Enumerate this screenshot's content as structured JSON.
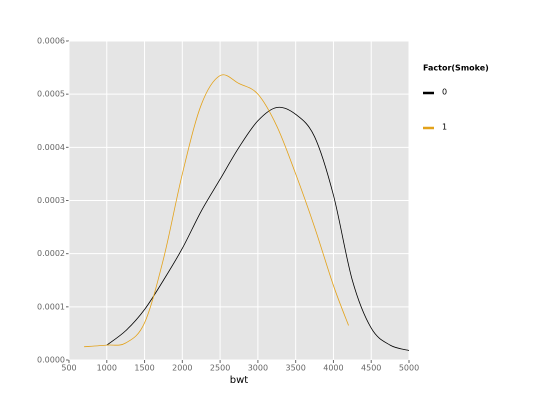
{
  "chart_data": {
    "type": "line",
    "x_label": "bwt",
    "legend_title": "Factor(Smoke)",
    "legend_position": "right",
    "grid": true,
    "xlim": [
      500,
      5000
    ],
    "xticks": [
      500,
      1000,
      1500,
      2000,
      2500,
      3000,
      3500,
      4000,
      4500,
      5000
    ],
    "ylim": [
      0,
      0.0006
    ],
    "yticks": [
      {
        "value": 0,
        "label": "0.0000"
      },
      {
        "value": 0.0001,
        "label": "0.0001"
      },
      {
        "value": 0.0002,
        "label": "0.0002"
      },
      {
        "value": 0.0003,
        "label": "0.0003"
      },
      {
        "value": 0.0004,
        "label": "0.0004"
      },
      {
        "value": 0.0005,
        "label": "0.0005"
      },
      {
        "value": 0.0006,
        "label": "0.0006"
      }
    ],
    "series": [
      {
        "name": "0",
        "color": "#000000",
        "x": [
          1000,
          1250,
          1500,
          1750,
          2000,
          2250,
          2500,
          2750,
          3000,
          3250,
          3500,
          3750,
          4000,
          4250,
          4500,
          4750,
          5000
        ],
        "values": [
          2.8e-05,
          5.5e-05,
          9.5e-05,
          0.00015,
          0.00021,
          0.00028,
          0.00034,
          0.0004,
          0.00045,
          0.000475,
          0.000462,
          0.00042,
          0.00031,
          0.00015,
          6e-05,
          2.8e-05,
          1.8e-05
        ]
      },
      {
        "name": "1",
        "color": "#e3a21a",
        "x": [
          700,
          1000,
          1250,
          1500,
          1750,
          2000,
          2250,
          2500,
          2750,
          3000,
          3250,
          3500,
          3750,
          4000,
          4200
        ],
        "values": [
          2.5e-05,
          2.8e-05,
          3.2e-05,
          7e-05,
          0.00019,
          0.00035,
          0.00048,
          0.000535,
          0.00052,
          0.0005,
          0.00044,
          0.00035,
          0.00025,
          0.00014,
          6.5e-05
        ]
      }
    ]
  }
}
